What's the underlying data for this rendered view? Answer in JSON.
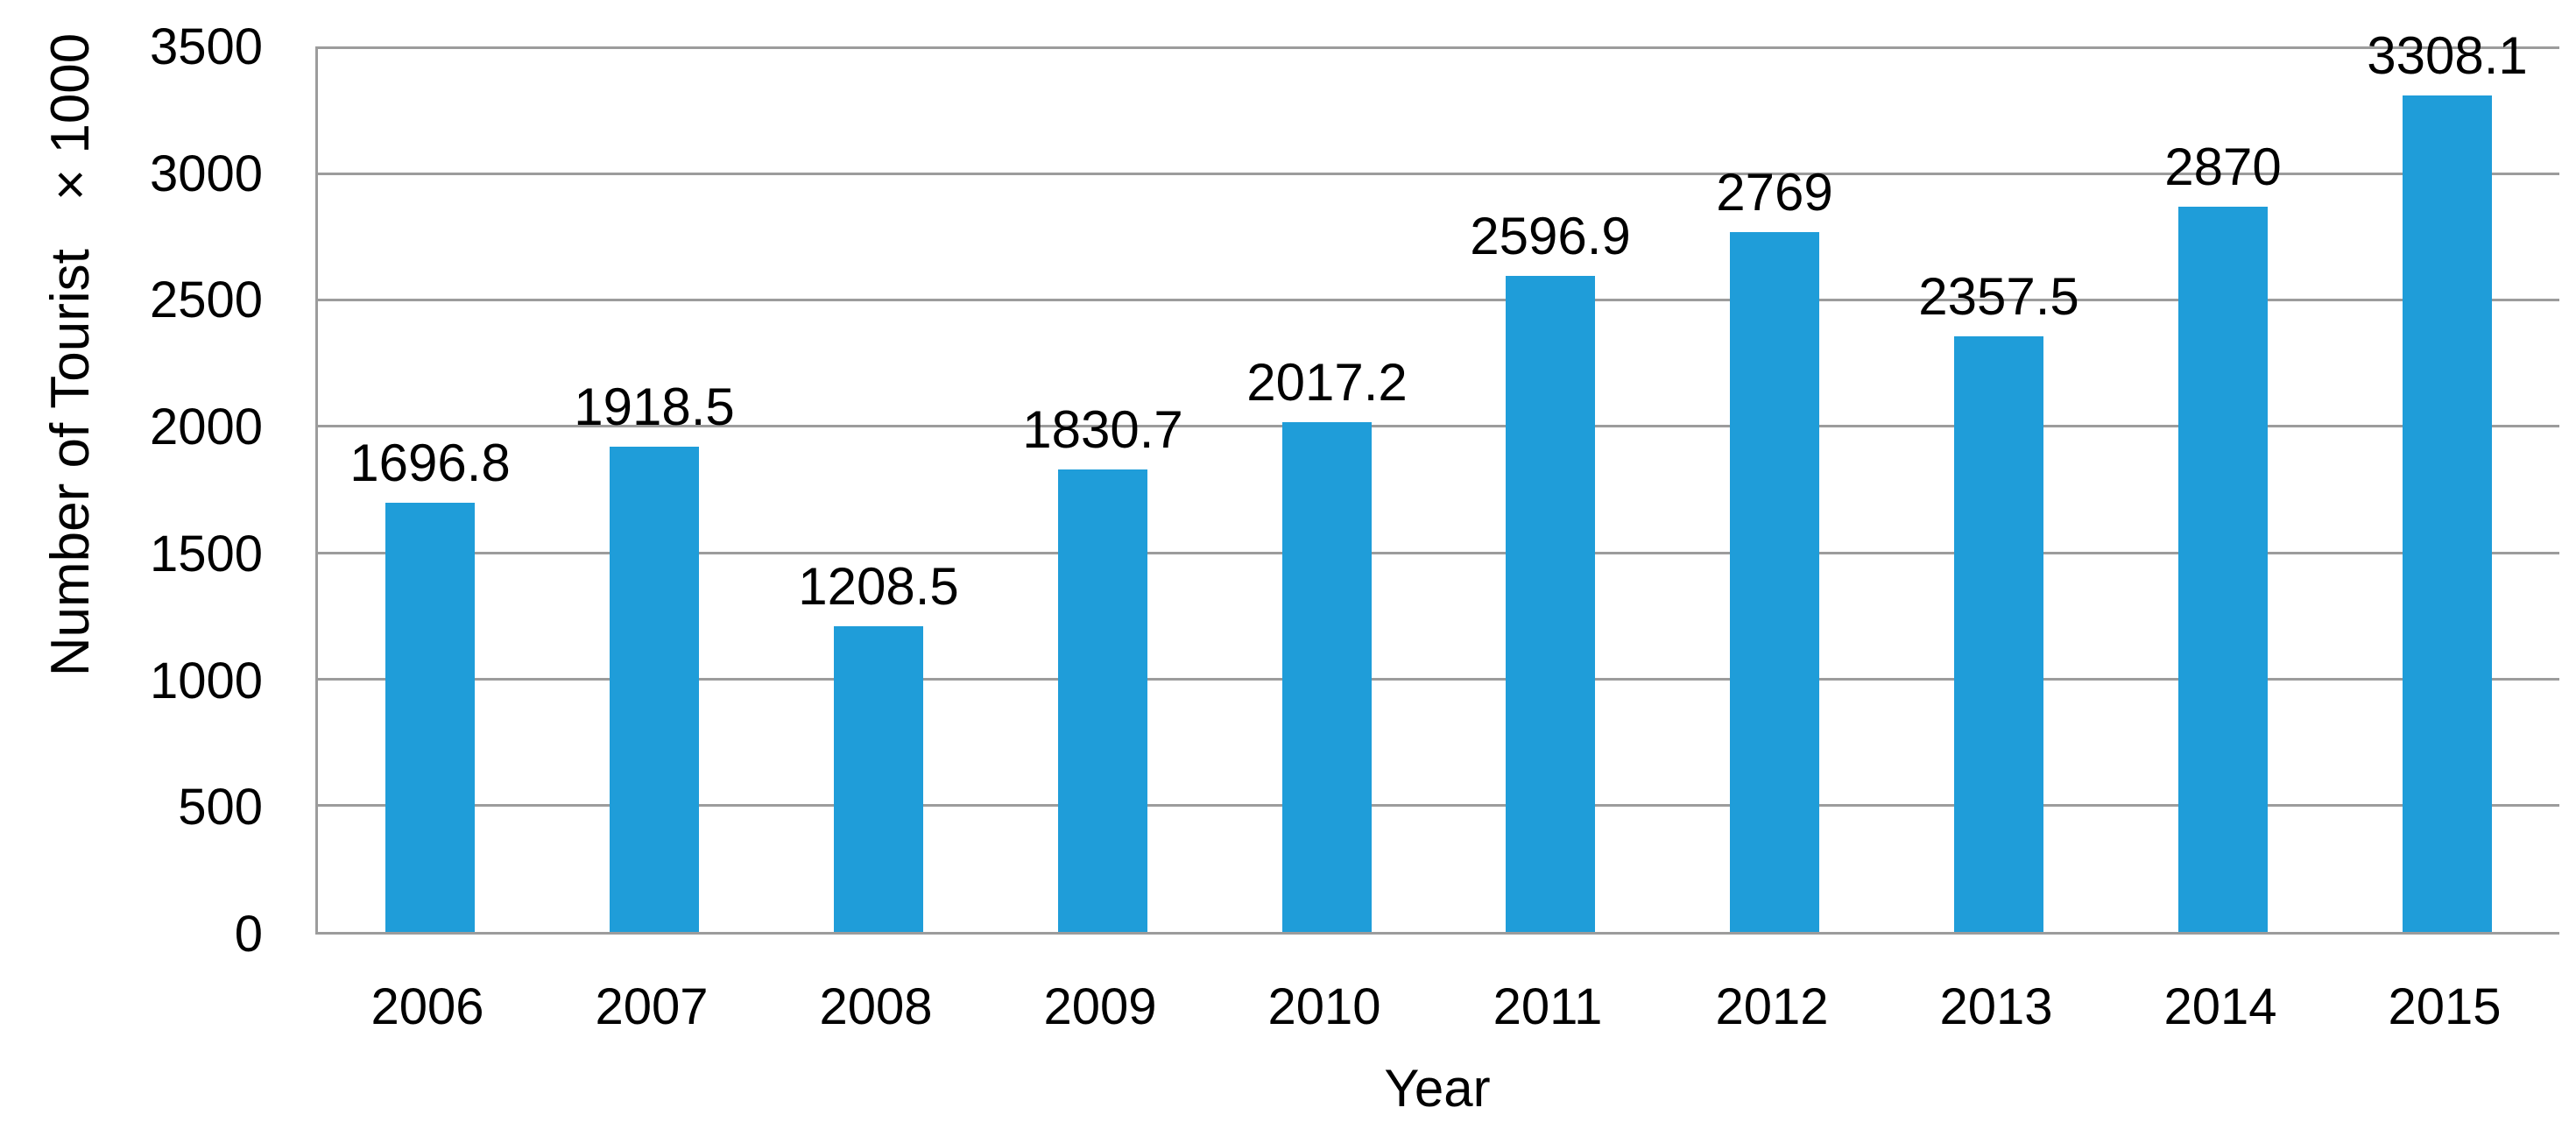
{
  "chart_data": {
    "type": "bar",
    "title": "",
    "categories": [
      "2006",
      "2007",
      "2008",
      "2009",
      "2010",
      "2011",
      "2012",
      "2013",
      "2014",
      "2015"
    ],
    "values": [
      1696.8,
      1918.5,
      1208.5,
      1830.7,
      2017.2,
      2596.9,
      2769,
      2357.5,
      2870,
      3308.1
    ],
    "data_labels": [
      "1696.8",
      "1918.5",
      "1208.5",
      "1830.7",
      "2017.2",
      "2596.9",
      "2769",
      "2357.5",
      "2870",
      "3308.1"
    ],
    "xlabel": "Year",
    "ylabel": "Number of Tourist",
    "ylabel_unit": "× 1000",
    "ylim": [
      0,
      3500
    ],
    "yticks": [
      0,
      500,
      1000,
      1500,
      2000,
      2500,
      3000,
      3500
    ],
    "grid": "horizontal",
    "legend": "none",
    "bar_color": "#1F9DD9",
    "grid_color": "#9C9C9C",
    "axis_color": "#9C9C9C",
    "text_color": "#000000"
  }
}
